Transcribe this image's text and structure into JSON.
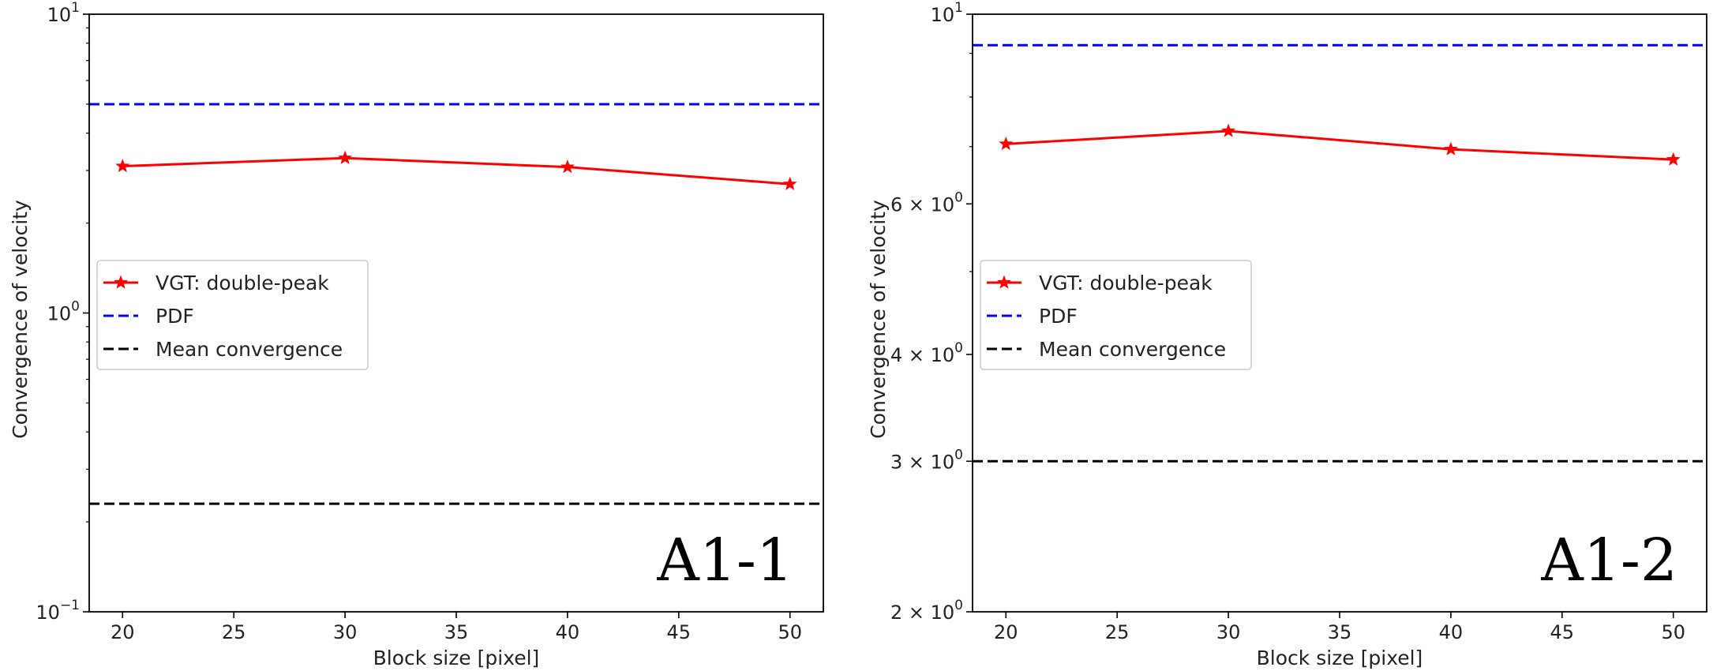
{
  "chart_data": [
    {
      "type": "line",
      "panel_label": "A1-1",
      "xlabel": "Block size [pixel]",
      "ylabel": "Convergence of velocity",
      "yscale": "log",
      "xlim": [
        18.5,
        51.5
      ],
      "ylim": [
        0.1,
        10
      ],
      "xticks": [
        20,
        25,
        30,
        35,
        40,
        45,
        50
      ],
      "yticks": [
        {
          "value": 0.1,
          "base": "10",
          "exp": "−1"
        },
        {
          "value": 1,
          "base": "10",
          "exp": "0"
        },
        {
          "value": 10,
          "base": "10",
          "exp": "1"
        }
      ],
      "series": [
        {
          "name": "VGT: double-peak",
          "style": "line-star",
          "color": "#ff0000",
          "x": [
            20,
            30,
            40,
            50
          ],
          "values": [
            3.1,
            3.3,
            3.08,
            2.7
          ]
        },
        {
          "name": "PDF",
          "style": "hline-dashed",
          "color": "#0000ff",
          "value": 5.0
        },
        {
          "name": "Mean convergence",
          "style": "hline-dashed",
          "color": "#000000",
          "value": 0.23
        }
      ],
      "legend_position": "center-left"
    },
    {
      "type": "line",
      "panel_label": "A1-2",
      "xlabel": "Block size [pixel]",
      "ylabel": "Convergence of velocity",
      "yscale": "log",
      "xlim": [
        18.5,
        51.5
      ],
      "ylim": [
        2,
        10
      ],
      "xticks": [
        20,
        25,
        30,
        35,
        40,
        45,
        50
      ],
      "yticks": [
        {
          "value": 2,
          "base": "2 × 10",
          "exp": "0"
        },
        {
          "value": 3,
          "base": "3 × 10",
          "exp": "0"
        },
        {
          "value": 4,
          "base": "4 × 10",
          "exp": "0"
        },
        {
          "value": 6,
          "base": "6 × 10",
          "exp": "0"
        },
        {
          "value": 10,
          "base": "10",
          "exp": "1"
        }
      ],
      "series": [
        {
          "name": "VGT: double-peak",
          "style": "line-star",
          "color": "#ff0000",
          "x": [
            20,
            30,
            40,
            50
          ],
          "values": [
            7.05,
            7.3,
            6.95,
            6.76
          ]
        },
        {
          "name": "PDF",
          "style": "hline-dashed",
          "color": "#0000ff",
          "value": 9.2
        },
        {
          "name": "Mean convergence",
          "style": "hline-dashed",
          "color": "#000000",
          "value": 3.0
        }
      ],
      "legend_position": "center-left"
    }
  ]
}
